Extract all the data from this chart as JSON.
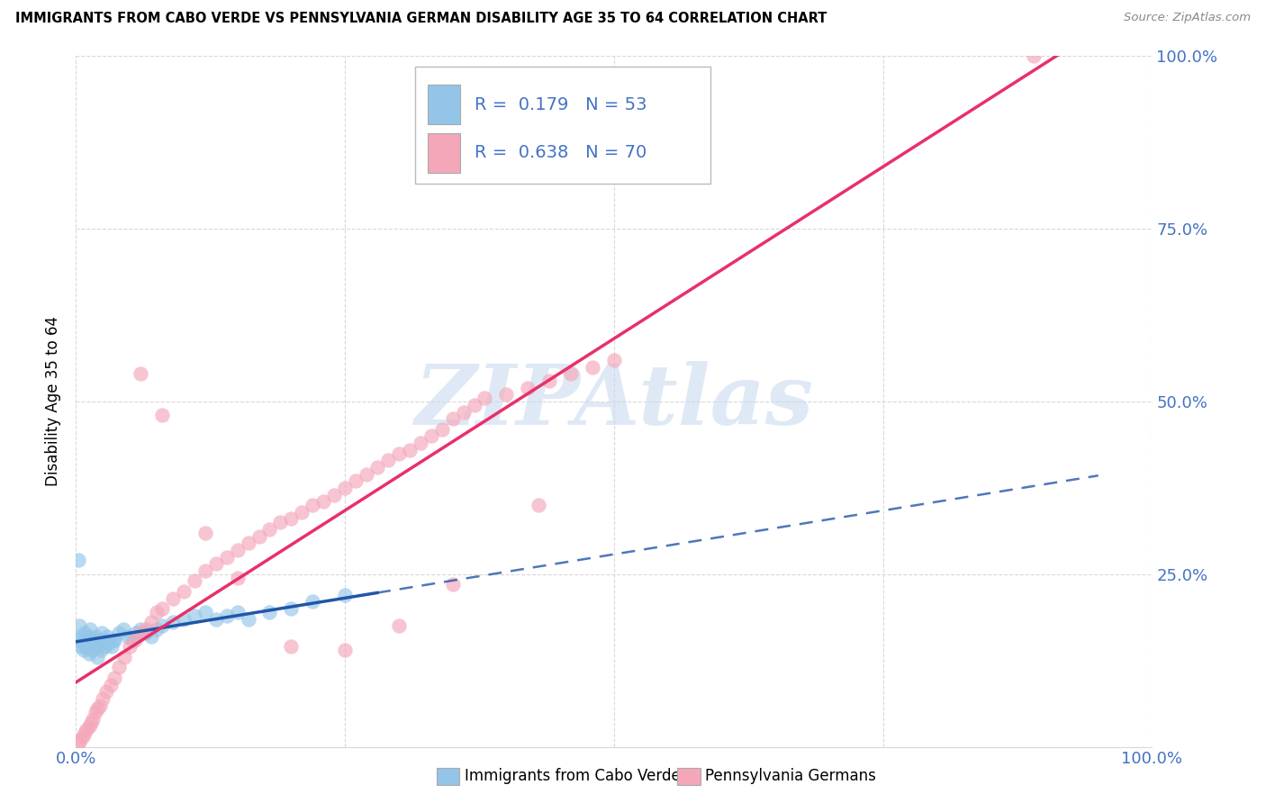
{
  "title": "IMMIGRANTS FROM CABO VERDE VS PENNSYLVANIA GERMAN DISABILITY AGE 35 TO 64 CORRELATION CHART",
  "source": "Source: ZipAtlas.com",
  "ylabel": "Disability Age 35 to 64",
  "xlim": [
    0,
    1.0
  ],
  "ylim": [
    0,
    1.0
  ],
  "cabo_verde_R": 0.179,
  "cabo_verde_N": 53,
  "pa_german_R": 0.638,
  "pa_german_N": 70,
  "cabo_verde_color": "#92c5e8",
  "pa_german_color": "#f4a7b9",
  "cabo_verde_line_color": "#2255aa",
  "pa_german_line_color": "#e8306a",
  "watermark_color": "#c5d8ee",
  "grid_color": "#d8d8d8",
  "tick_color": "#4472c4",
  "cv_x": [
    0.001,
    0.003,
    0.004,
    0.005,
    0.006,
    0.007,
    0.008,
    0.009,
    0.01,
    0.011,
    0.012,
    0.013,
    0.014,
    0.015,
    0.016,
    0.017,
    0.018,
    0.019,
    0.02,
    0.021,
    0.022,
    0.023,
    0.024,
    0.025,
    0.027,
    0.029,
    0.031,
    0.033,
    0.036,
    0.04,
    0.044,
    0.048,
    0.052,
    0.056,
    0.06,
    0.065,
    0.07,
    0.075,
    0.08,
    0.09,
    0.1,
    0.11,
    0.12,
    0.13,
    0.14,
    0.15,
    0.16,
    0.18,
    0.2,
    0.22,
    0.25,
    0.002,
    0.035
  ],
  "cv_y": [
    0.155,
    0.175,
    0.145,
    0.16,
    0.15,
    0.14,
    0.165,
    0.155,
    0.145,
    0.16,
    0.135,
    0.17,
    0.15,
    0.14,
    0.155,
    0.145,
    0.16,
    0.15,
    0.13,
    0.145,
    0.155,
    0.14,
    0.165,
    0.155,
    0.145,
    0.16,
    0.15,
    0.145,
    0.155,
    0.165,
    0.17,
    0.16,
    0.155,
    0.165,
    0.17,
    0.165,
    0.16,
    0.17,
    0.175,
    0.18,
    0.185,
    0.19,
    0.195,
    0.185,
    0.19,
    0.195,
    0.185,
    0.195,
    0.2,
    0.21,
    0.22,
    0.27,
    0.155
  ],
  "pg_x": [
    0.002,
    0.004,
    0.006,
    0.008,
    0.01,
    0.012,
    0.014,
    0.016,
    0.018,
    0.02,
    0.022,
    0.025,
    0.028,
    0.032,
    0.036,
    0.04,
    0.045,
    0.05,
    0.055,
    0.06,
    0.065,
    0.07,
    0.075,
    0.08,
    0.09,
    0.1,
    0.11,
    0.12,
    0.13,
    0.14,
    0.15,
    0.16,
    0.17,
    0.18,
    0.19,
    0.2,
    0.21,
    0.22,
    0.23,
    0.24,
    0.25,
    0.26,
    0.27,
    0.28,
    0.29,
    0.3,
    0.31,
    0.32,
    0.33,
    0.34,
    0.35,
    0.36,
    0.37,
    0.38,
    0.4,
    0.42,
    0.44,
    0.46,
    0.48,
    0.5,
    0.06,
    0.08,
    0.12,
    0.15,
    0.2,
    0.25,
    0.3,
    0.35,
    0.89,
    0.43
  ],
  "pg_y": [
    0.005,
    0.01,
    0.015,
    0.02,
    0.025,
    0.03,
    0.035,
    0.04,
    0.05,
    0.055,
    0.06,
    0.07,
    0.08,
    0.09,
    0.1,
    0.115,
    0.13,
    0.145,
    0.155,
    0.165,
    0.17,
    0.18,
    0.195,
    0.2,
    0.215,
    0.225,
    0.24,
    0.255,
    0.265,
    0.275,
    0.285,
    0.295,
    0.305,
    0.315,
    0.325,
    0.33,
    0.34,
    0.35,
    0.355,
    0.365,
    0.375,
    0.385,
    0.395,
    0.405,
    0.415,
    0.425,
    0.43,
    0.44,
    0.45,
    0.46,
    0.475,
    0.485,
    0.495,
    0.505,
    0.51,
    0.52,
    0.53,
    0.54,
    0.55,
    0.56,
    0.54,
    0.48,
    0.31,
    0.245,
    0.145,
    0.14,
    0.175,
    0.235,
    1.0,
    0.35
  ],
  "cv_line_x0": 0.0,
  "cv_line_x1": 0.28,
  "cv_line_xdash_end": 0.95,
  "pg_line_x0": 0.0,
  "pg_line_x1": 1.0
}
